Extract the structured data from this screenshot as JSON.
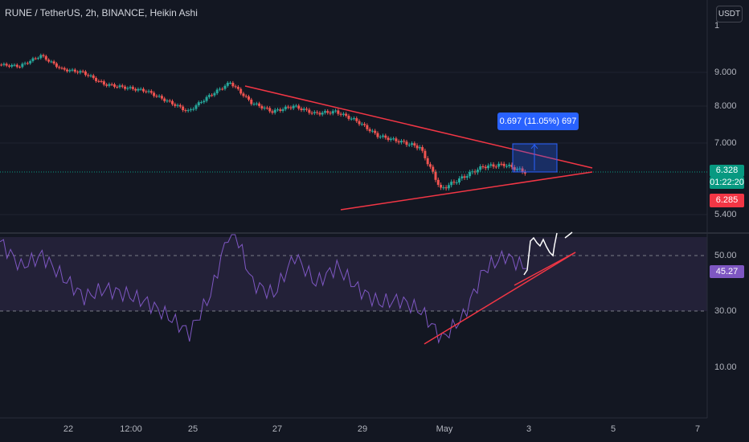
{
  "header": {
    "title": "RUNE / TetherUS, 2h, BINANCE, Heikin Ashi",
    "unit_button": "USDT"
  },
  "price_axis": {
    "ticks": [
      "1",
      "9.000",
      "8.000",
      "7.000",
      "5.400"
    ],
    "last_price": "6.328",
    "countdown": "01:22:20",
    "low_marker": "6.285",
    "last_price_color": "#089981",
    "low_marker_color": "#f23645"
  },
  "rsi_axis": {
    "ticks": [
      "50.00",
      "30.00",
      "10.00"
    ],
    "current": "45.27",
    "current_color": "#7e57c2"
  },
  "time_axis": {
    "labels": [
      "22",
      "12:00",
      "25",
      "27",
      "29",
      "May",
      "3",
      "5",
      "7"
    ]
  },
  "measure_tool": {
    "label": "0.697 (11.05%) 697"
  },
  "colors": {
    "background": "#131722",
    "up_candle": "#26a69a",
    "down_candle": "#ef5350",
    "trendline": "#f23645",
    "rsi_line": "#7e57c2",
    "rsi_band": "#2a2540",
    "measure_fill": "#2962ff"
  },
  "chart_data": [
    {
      "type": "line",
      "name": "price",
      "x_range": [
        "Apr 20",
        "May 7"
      ],
      "ylim": [
        5.4,
        10
      ],
      "points": [
        [
          "Apr 20",
          9.25
        ],
        [
          "Apr 21",
          9.2
        ],
        [
          "Apr 21 12:00",
          9.55
        ],
        [
          "Apr 22",
          9.1
        ],
        [
          "Apr 22 12:00",
          9.0
        ],
        [
          "Apr 23",
          8.65
        ],
        [
          "Apr 23 12:00",
          8.55
        ],
        [
          "Apr 24",
          8.45
        ],
        [
          "Apr 24 12:00",
          8.15
        ],
        [
          "Apr 25",
          7.85
        ],
        [
          "Apr 25 12:00",
          8.3
        ],
        [
          "Apr 26",
          8.7
        ],
        [
          "Apr 26 12:00",
          8.1
        ],
        [
          "Apr 27",
          7.85
        ],
        [
          "Apr 27 12:00",
          8.0
        ],
        [
          "Apr 28",
          7.8
        ],
        [
          "Apr 28 12:00",
          7.85
        ],
        [
          "Apr 29",
          7.6
        ],
        [
          "Apr 29 12:00",
          7.2
        ],
        [
          "Apr 30",
          7.05
        ],
        [
          "Apr 30 12:00",
          6.9
        ],
        [
          "May 1",
          5.95
        ],
        [
          "May 1 12:00",
          6.2
        ],
        [
          "May 2",
          6.45
        ],
        [
          "May 2 12:00",
          6.5
        ],
        [
          "May 3",
          6.33
        ]
      ]
    },
    {
      "type": "line",
      "name": "RSI",
      "ylim": [
        0,
        60
      ],
      "points": [
        [
          "Apr 20",
          55
        ],
        [
          "Apr 21",
          46
        ],
        [
          "Apr 21 12:00",
          50
        ],
        [
          "Apr 22",
          42
        ],
        [
          "Apr 22 12:00",
          35
        ],
        [
          "Apr 23",
          38
        ],
        [
          "Apr 23 12:00",
          36
        ],
        [
          "Apr 24",
          33
        ],
        [
          "Apr 24 12:00",
          28
        ],
        [
          "Apr 25",
          22
        ],
        [
          "Apr 25 12:00",
          36
        ],
        [
          "Apr 26",
          62
        ],
        [
          "Apr 26 12:00",
          40
        ],
        [
          "Apr 27",
          36
        ],
        [
          "Apr 27 12:00",
          50
        ],
        [
          "Apr 28",
          40
        ],
        [
          "Apr 28 12:00",
          46
        ],
        [
          "Apr 29",
          38
        ],
        [
          "Apr 29 12:00",
          33
        ],
        [
          "Apr 30",
          34
        ],
        [
          "Apr 30 12:00",
          30
        ],
        [
          "May 1",
          20
        ],
        [
          "May 1 12:00",
          28
        ],
        [
          "May 2",
          45
        ],
        [
          "May 2 12:00",
          50
        ],
        [
          "May 3",
          45.27
        ]
      ]
    }
  ]
}
